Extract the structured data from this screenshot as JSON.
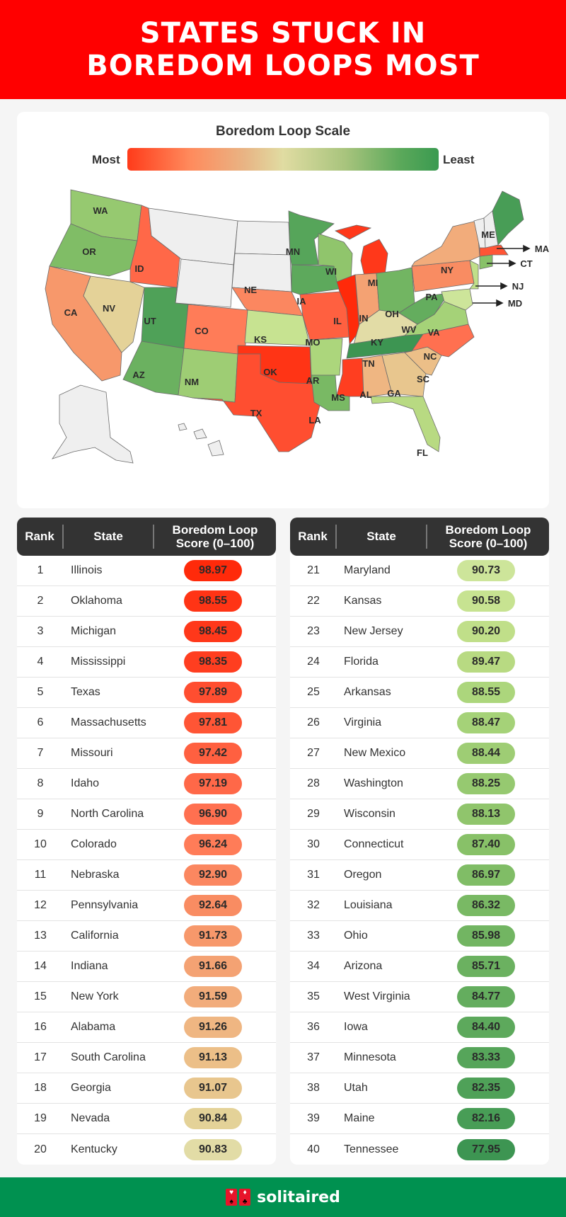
{
  "header": {
    "title": "STATES STUCK IN BOREDOM LOOPS MOST"
  },
  "legend": {
    "title": "Boredom Loop Scale",
    "most_label": "Most",
    "least_label": "Least",
    "gradient": [
      "#ff3b1a",
      "#ff8a5c",
      "#e8b585",
      "#e0dca2",
      "#a8c47d",
      "#5aa85a",
      "#3a9a50"
    ]
  },
  "map": {
    "callouts": [
      "MA",
      "CT",
      "NJ",
      "MD"
    ],
    "no_data_color": "#efefef"
  },
  "table": {
    "headers": {
      "rank": "Rank",
      "state": "State",
      "score": "Boredom Loop Score (0–100)"
    },
    "left": [
      {
        "rank": "1",
        "state": "Illinois",
        "score": "98.97",
        "color": "#ff2a0a"
      },
      {
        "rank": "2",
        "state": "Oklahoma",
        "score": "98.55",
        "color": "#ff3415"
      },
      {
        "rank": "3",
        "state": "Michigan",
        "score": "98.45",
        "color": "#ff381a"
      },
      {
        "rank": "4",
        "state": "Mississippi",
        "score": "98.35",
        "color": "#ff3e20"
      },
      {
        "rank": "5",
        "state": "Texas",
        "score": "97.89",
        "color": "#ff4e30"
      },
      {
        "rank": "6",
        "state": "Massachusetts",
        "score": "97.81",
        "color": "#ff5535"
      },
      {
        "rank": "7",
        "state": "Missouri",
        "score": "97.42",
        "color": "#ff6040"
      },
      {
        "rank": "8",
        "state": "Idaho",
        "score": "97.19",
        "color": "#ff6848"
      },
      {
        "rank": "9",
        "state": "North Carolina",
        "score": "96.90",
        "color": "#ff7050"
      },
      {
        "rank": "10",
        "state": "Colorado",
        "score": "96.24",
        "color": "#ff7c58"
      },
      {
        "rank": "11",
        "state": "Nebraska",
        "score": "92.90",
        "color": "#fb8760"
      },
      {
        "rank": "12",
        "state": "Pennsylvania",
        "score": "92.64",
        "color": "#f98c62"
      },
      {
        "rank": "13",
        "state": "California",
        "score": "91.73",
        "color": "#f7986b"
      },
      {
        "rank": "14",
        "state": "Indiana",
        "score": "91.66",
        "color": "#f4a273"
      },
      {
        "rank": "15",
        "state": "New York",
        "score": "91.59",
        "color": "#f2ac7b"
      },
      {
        "rank": "16",
        "state": "Alabama",
        "score": "91.26",
        "color": "#efb682"
      },
      {
        "rank": "17",
        "state": "South Carolina",
        "score": "91.13",
        "color": "#ecbf88"
      },
      {
        "rank": "18",
        "state": "Georgia",
        "score": "91.07",
        "color": "#e8c68e"
      },
      {
        "rank": "19",
        "state": "Nevada",
        "score": "90.84",
        "color": "#e4d298"
      },
      {
        "rank": "20",
        "state": "Kentucky",
        "score": "90.83",
        "color": "#e2dca6"
      }
    ],
    "right": [
      {
        "rank": "21",
        "state": "Maryland",
        "score": "90.73",
        "color": "#cde59a"
      },
      {
        "rank": "22",
        "state": "Kansas",
        "score": "90.58",
        "color": "#c7e391"
      },
      {
        "rank": "23",
        "state": "New Jersey",
        "score": "90.20",
        "color": "#c0df89"
      },
      {
        "rank": "24",
        "state": "Florida",
        "score": "89.47",
        "color": "#b8da82"
      },
      {
        "rank": "25",
        "state": "Arkansas",
        "score": "88.55",
        "color": "#acd67c"
      },
      {
        "rank": "26",
        "state": "Virginia",
        "score": "88.47",
        "color": "#a5d278"
      },
      {
        "rank": "27",
        "state": "New Mexico",
        "score": "88.44",
        "color": "#9ecd74"
      },
      {
        "rank": "28",
        "state": "Washington",
        "score": "88.25",
        "color": "#96c970"
      },
      {
        "rank": "29",
        "state": "Wisconsin",
        "score": "88.13",
        "color": "#90c56c"
      },
      {
        "rank": "30",
        "state": "Connecticut",
        "score": "87.40",
        "color": "#88c168"
      },
      {
        "rank": "31",
        "state": "Oregon",
        "score": "86.97",
        "color": "#80bd66"
      },
      {
        "rank": "32",
        "state": "Louisiana",
        "score": "86.32",
        "color": "#79b964"
      },
      {
        "rank": "33",
        "state": "Ohio",
        "score": "85.98",
        "color": "#72b562"
      },
      {
        "rank": "34",
        "state": "Arizona",
        "score": "85.71",
        "color": "#6bb160"
      },
      {
        "rank": "35",
        "state": "West Virginia",
        "score": "84.77",
        "color": "#64ad5e"
      },
      {
        "rank": "36",
        "state": "Iowa",
        "score": "84.40",
        "color": "#5da95c"
      },
      {
        "rank": "37",
        "state": "Minnesota",
        "score": "83.33",
        "color": "#56a55a"
      },
      {
        "rank": "38",
        "state": "Utah",
        "score": "82.35",
        "color": "#4fa158"
      },
      {
        "rank": "39",
        "state": "Maine",
        "score": "82.16",
        "color": "#489d56"
      },
      {
        "rank": "40",
        "state": "Tennessee",
        "score": "77.95",
        "color": "#3d9552"
      }
    ]
  },
  "footer": {
    "brand": "solitaired",
    "background": "#009150"
  },
  "chart_data": {
    "type": "table",
    "title": "States Stuck in Boredom Loops Most",
    "subtitle": "Boredom Loop Scale (Most → Least), choropleth map of US states",
    "xlabel": "State",
    "ylabel": "Boredom Loop Score (0–100)",
    "categories": [
      "Illinois",
      "Oklahoma",
      "Michigan",
      "Mississippi",
      "Texas",
      "Massachusetts",
      "Missouri",
      "Idaho",
      "North Carolina",
      "Colorado",
      "Nebraska",
      "Pennsylvania",
      "California",
      "Indiana",
      "New York",
      "Alabama",
      "South Carolina",
      "Georgia",
      "Nevada",
      "Kentucky",
      "Maryland",
      "Kansas",
      "New Jersey",
      "Florida",
      "Arkansas",
      "Virginia",
      "New Mexico",
      "Washington",
      "Wisconsin",
      "Connecticut",
      "Oregon",
      "Louisiana",
      "Ohio",
      "Arizona",
      "West Virginia",
      "Iowa",
      "Minnesota",
      "Utah",
      "Maine",
      "Tennessee"
    ],
    "values": [
      98.97,
      98.55,
      98.45,
      98.35,
      97.89,
      97.81,
      97.42,
      97.19,
      96.9,
      96.24,
      92.9,
      92.64,
      91.73,
      91.66,
      91.59,
      91.26,
      91.13,
      91.07,
      90.84,
      90.83,
      90.73,
      90.58,
      90.2,
      89.47,
      88.55,
      88.47,
      88.44,
      88.25,
      88.13,
      87.4,
      86.97,
      86.32,
      85.98,
      85.71,
      84.77,
      84.4,
      83.33,
      82.35,
      82.16,
      77.95
    ],
    "ranks": [
      1,
      2,
      3,
      4,
      5,
      6,
      7,
      8,
      9,
      10,
      11,
      12,
      13,
      14,
      15,
      16,
      17,
      18,
      19,
      20,
      21,
      22,
      23,
      24,
      25,
      26,
      27,
      28,
      29,
      30,
      31,
      32,
      33,
      34,
      35,
      36,
      37,
      38,
      39,
      40
    ],
    "legend": [
      "Most",
      "Least"
    ],
    "no_data_states": [
      "MT",
      "WY",
      "ND",
      "SD",
      "NH",
      "VT",
      "AK",
      "HI"
    ]
  }
}
